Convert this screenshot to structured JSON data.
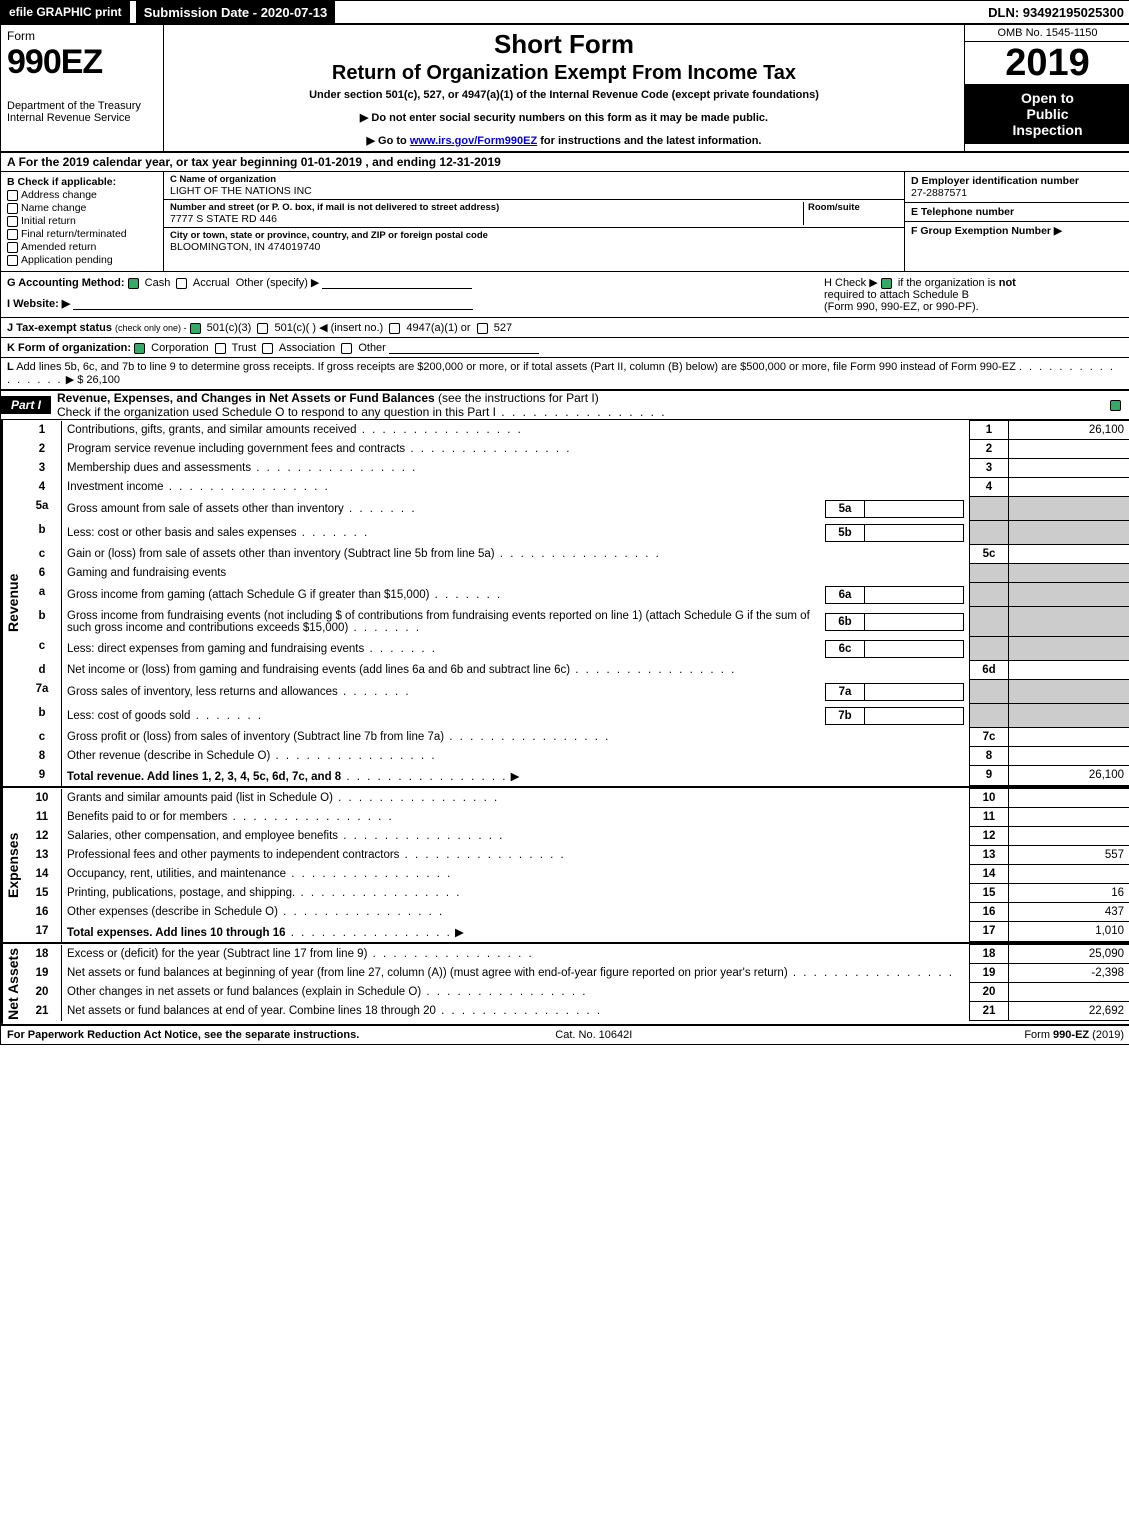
{
  "topbar": {
    "efile": "efile GRAPHIC print",
    "subdate_label": "Submission Date - 2020-07-13",
    "dln": "DLN: 93492195025300"
  },
  "header": {
    "form_word": "Form",
    "form_num": "990EZ",
    "dept": "Department of the Treasury",
    "irs": "Internal Revenue Service",
    "short_form": "Short Form",
    "return_line": "Return of Organization Exempt From Income Tax",
    "under_section": "Under section 501(c), 527, or 4947(a)(1) of the Internal Revenue Code (except private foundations)",
    "no_ssn": "▶ Do not enter social security numbers on this form as it may be made public.",
    "goto_pre": "▶ Go to ",
    "goto_link": "www.irs.gov/Form990EZ",
    "goto_post": " for instructions and the latest information.",
    "omb": "OMB No. 1545-1150",
    "year": "2019",
    "open1": "Open to",
    "open2": "Public",
    "open3": "Inspection"
  },
  "taxyear": {
    "a": "A",
    "text": "For the 2019 calendar year, or tax year beginning 01-01-2019 , and ending 12-31-2019"
  },
  "boxB": {
    "title": "B  Check if applicable:",
    "opts": [
      "Address change",
      "Name change",
      "Initial return",
      "Final return/terminated",
      "Amended return",
      "Application pending"
    ]
  },
  "boxC": {
    "name_lbl": "C Name of organization",
    "name": "LIGHT OF THE NATIONS INC",
    "addr_lbl": "Number and street (or P. O. box, if mail is not delivered to street address)",
    "room_lbl": "Room/suite",
    "addr": "7777 S STATE RD 446",
    "city_lbl": "City or town, state or province, country, and ZIP or foreign postal code",
    "city": "BLOOMINGTON, IN  474019740"
  },
  "boxD": {
    "lbl": "D Employer identification number",
    "val": "27-2887571"
  },
  "boxE": {
    "lbl": "E Telephone number",
    "val": ""
  },
  "boxF": {
    "lbl": "F Group Exemption Number  ▶",
    "val": ""
  },
  "rowG": {
    "lbl": "G Accounting Method:",
    "cash": "Cash",
    "accrual": "Accrual",
    "other": "Other (specify) ▶"
  },
  "rowH": {
    "pre": "H  Check ▶ ",
    "post": " if the organization is ",
    "not": "not",
    "l2": "required to attach Schedule B",
    "l3": "(Form 990, 990-EZ, or 990-PF)."
  },
  "rowI": {
    "lbl": "I Website: ▶"
  },
  "rowJ": {
    "lbl": "J Tax-exempt status",
    "sub": "(check only one) -",
    "o1": "501(c)(3)",
    "o2": "501(c)(  )",
    "ins": "◀ (insert no.)",
    "o3": "4947(a)(1) or",
    "o4": "527"
  },
  "rowK": {
    "lbl": "K Form of organization:",
    "opts": [
      "Corporation",
      "Trust",
      "Association",
      "Other"
    ]
  },
  "rowL": {
    "lbl": "L",
    "text": "Add lines 5b, 6c, and 7b to line 9 to determine gross receipts. If gross receipts are $200,000 or more, or if total assets (Part II, column (B) below) are $500,000 or more, file Form 990 instead of Form 990-EZ",
    "amt": "▶ $ 26,100"
  },
  "part1": {
    "tag": "Part I",
    "title": "Revenue, Expenses, and Changes in Net Assets or Fund Balances ",
    "sub": "(see the instructions for Part I)",
    "check_line": "Check if the organization used Schedule O to respond to any question in this Part I"
  },
  "sections": {
    "revenue_label": "Revenue",
    "expenses_label": "Expenses",
    "netassets_label": "Net Assets"
  },
  "revenue": [
    {
      "n": "1",
      "d": "Contributions, gifts, grants, and similar amounts received",
      "code": "1",
      "val": "26,100"
    },
    {
      "n": "2",
      "d": "Program service revenue including government fees and contracts",
      "code": "2",
      "val": ""
    },
    {
      "n": "3",
      "d": "Membership dues and assessments",
      "code": "3",
      "val": ""
    },
    {
      "n": "4",
      "d": "Investment income",
      "code": "4",
      "val": ""
    },
    {
      "n": "5a",
      "d": "Gross amount from sale of assets other than inventory",
      "mini": "5a"
    },
    {
      "n": "b",
      "d": "Less: cost or other basis and sales expenses",
      "mini": "5b"
    },
    {
      "n": "c",
      "d": "Gain or (loss) from sale of assets other than inventory (Subtract line 5b from line 5a)",
      "code": "5c",
      "val": ""
    },
    {
      "n": "6",
      "d": "Gaming and fundraising events"
    },
    {
      "n": "a",
      "d": "Gross income from gaming (attach Schedule G if greater than $15,000)",
      "mini": "6a"
    },
    {
      "n": "b",
      "d": "Gross income from fundraising events (not including $                        of contributions from fundraising events reported on line 1) (attach Schedule G if the sum of such gross income and contributions exceeds $15,000)",
      "mini": "6b"
    },
    {
      "n": "c",
      "d": "Less: direct expenses from gaming and fundraising events",
      "mini": "6c"
    },
    {
      "n": "d",
      "d": "Net income or (loss) from gaming and fundraising events (add lines 6a and 6b and subtract line 6c)",
      "code": "6d",
      "val": ""
    },
    {
      "n": "7a",
      "d": "Gross sales of inventory, less returns and allowances",
      "mini": "7a"
    },
    {
      "n": "b",
      "d": "Less: cost of goods sold",
      "mini": "7b"
    },
    {
      "n": "c",
      "d": "Gross profit or (loss) from sales of inventory (Subtract line 7b from line 7a)",
      "code": "7c",
      "val": ""
    },
    {
      "n": "8",
      "d": "Other revenue (describe in Schedule O)",
      "code": "8",
      "val": ""
    },
    {
      "n": "9",
      "d": "Total revenue. Add lines 1, 2, 3, 4, 5c, 6d, 7c, and 8",
      "code": "9",
      "val": "26,100",
      "bold": true,
      "arrow": true
    }
  ],
  "expenses": [
    {
      "n": "10",
      "d": "Grants and similar amounts paid (list in Schedule O)",
      "code": "10",
      "val": ""
    },
    {
      "n": "11",
      "d": "Benefits paid to or for members",
      "code": "11",
      "val": ""
    },
    {
      "n": "12",
      "d": "Salaries, other compensation, and employee benefits",
      "code": "12",
      "val": ""
    },
    {
      "n": "13",
      "d": "Professional fees and other payments to independent contractors",
      "code": "13",
      "val": "557"
    },
    {
      "n": "14",
      "d": "Occupancy, rent, utilities, and maintenance",
      "code": "14",
      "val": ""
    },
    {
      "n": "15",
      "d": "Printing, publications, postage, and shipping.",
      "code": "15",
      "val": "16"
    },
    {
      "n": "16",
      "d": "Other expenses (describe in Schedule O)",
      "code": "16",
      "val": "437"
    },
    {
      "n": "17",
      "d": "Total expenses. Add lines 10 through 16",
      "code": "17",
      "val": "1,010",
      "bold": true,
      "arrow": true
    }
  ],
  "netassets": [
    {
      "n": "18",
      "d": "Excess or (deficit) for the year (Subtract line 17 from line 9)",
      "code": "18",
      "val": "25,090"
    },
    {
      "n": "19",
      "d": "Net assets or fund balances at beginning of year (from line 27, column (A)) (must agree with end-of-year figure reported on prior year's return)",
      "code": "19",
      "val": "-2,398"
    },
    {
      "n": "20",
      "d": "Other changes in net assets or fund balances (explain in Schedule O)",
      "code": "20",
      "val": ""
    },
    {
      "n": "21",
      "d": "Net assets or fund balances at end of year. Combine lines 18 through 20",
      "code": "21",
      "val": "22,692"
    }
  ],
  "footer": {
    "left": "For Paperwork Reduction Act Notice, see the separate instructions.",
    "mid": "Cat. No. 10642I",
    "right_pre": "Form ",
    "right_form": "990-EZ",
    "right_post": " (2019)"
  },
  "colors": {
    "black": "#000000",
    "white": "#ffffff",
    "grey": "#cccccc",
    "green_check": "#33aa66",
    "link": "#0000ee"
  }
}
